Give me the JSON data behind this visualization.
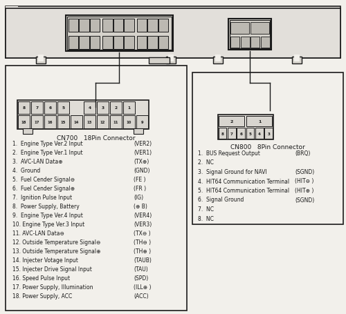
{
  "bg_color": "#f2f0eb",
  "line_color": "#1a1a1a",
  "pin_fill": "#d8d5cf",
  "conn_fill": "#e5e2dc",
  "title_left": "CN700   18Pin Connector",
  "title_right": "CN800   8Pin Connector",
  "left_pins_desc": [
    "1.  Engine Type Ver.2 Input",
    "2.  Engine Type Ver.1 Input",
    "3.  AVC-LAN Data⊕",
    "4.  Ground",
    "5.  Fuel Cender Signal⊖",
    "6.  Fuel Cender Signal⊕",
    "7.  Ignition Pulse Input",
    "8.  Power Supply, Battery",
    "9.  Engine Type Ver.4 Input",
    "10. Engine Type Ver.3 Input",
    "11. AVC-LAN Data⊖",
    "12. Outside Temperature Signal⊖",
    "13. Outside Temperature Signal⊕",
    "14. Injecter Votage Input",
    "15. Injecter Drive Signal Input",
    "16. Speed Pulse Input",
    "17. Power Supply, Illumination",
    "18. Power Supply, ACC"
  ],
  "left_pins_code": [
    "(VER2)",
    "(VER1)",
    "(TX⊕)",
    "(GND)",
    "(FE )",
    "(FR )",
    "(IG)",
    "(⊕ B)",
    "(VER4)",
    "(VER3)",
    "(TX⊖ )",
    "(TH⊖ )",
    "(TH⊕ )",
    "(TAUB)",
    "(TAU)",
    "(SPD)",
    "(ILL⊕ )",
    "(ACC)"
  ],
  "right_pins_desc": [
    "1.  BUS Request Output",
    "2.  NC",
    "3.  Signal Ground for NAVI",
    "4.  HIT64 Communication Terminal",
    "5.  HIT64 Communication Terminal",
    "6.  Signal Ground",
    "7.  NC",
    "8.  NC"
  ],
  "right_pins_code": [
    "(BRQ)",
    "",
    "(SGND)",
    "(HIT⊖ )",
    "(HIT⊕ )",
    "(SGND)",
    "",
    ""
  ],
  "figsize": [
    5.0,
    4.56
  ],
  "dpi": 100
}
